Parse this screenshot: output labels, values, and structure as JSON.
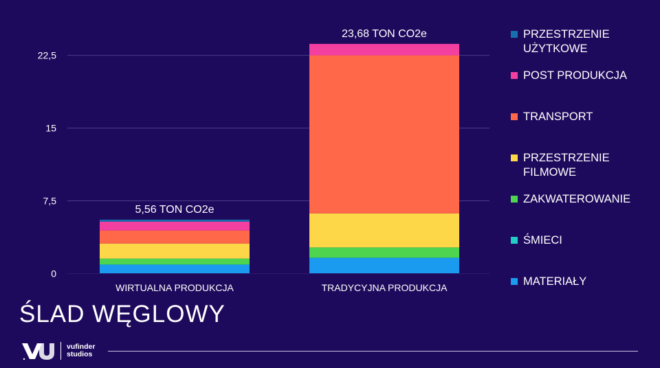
{
  "page": {
    "title": "ŚLAD WĘGLOWY"
  },
  "logo": {
    "mark": "VU",
    "text_line1": "vufinder",
    "text_line2": "studios"
  },
  "colors": {
    "background": "#1e0a5c",
    "grid": "#4a3a88",
    "text": "#ffffff"
  },
  "chart_data": {
    "type": "bar",
    "stacked": true,
    "categories": [
      "WIRTUALNA PRODUKCJA",
      "TRADYCYJNA PRODUKCJA"
    ],
    "totals_labels": [
      "5,56 TON CO2e",
      "23,68 TON CO2e"
    ],
    "ylim": [
      0,
      25
    ],
    "yticks": [
      0,
      7.5,
      15,
      22.5
    ],
    "ytick_labels": [
      "0",
      "7,5",
      "15",
      "22,5"
    ],
    "grid": true,
    "legend_position": "right",
    "series": [
      {
        "name": "MATERIAŁY",
        "color": "#1a9bf0",
        "values": [
          0.9,
          1.6
        ]
      },
      {
        "name": "ŚMIECI",
        "color": "#1fcfc4",
        "values": [
          0.05,
          0.05
        ]
      },
      {
        "name": "ZAKWATEROWANIE",
        "color": "#4fd44f",
        "values": [
          0.6,
          1.05
        ]
      },
      {
        "name": "PRZESTRZENIE FILMOWE",
        "color": "#fdd748",
        "values": [
          1.55,
          3.5
        ]
      },
      {
        "name": "TRANSPORT",
        "color": "#ff6848",
        "values": [
          1.35,
          16.3
        ]
      },
      {
        "name": "POST PRODUKCJA",
        "color": "#f23fa0",
        "values": [
          0.91,
          1.18
        ]
      },
      {
        "name": "PRZESTRZENIE UŻYTKOWE",
        "color": "#1570ad",
        "values": [
          0.2,
          0.0
        ]
      }
    ],
    "legend_order": [
      "PRZESTRZENIE UŻYTKOWE",
      "POST PRODUKCJA",
      "TRANSPORT",
      "PRZESTRZENIE FILMOWE",
      "ZAKWATEROWANIE",
      "ŚMIECI",
      "MATERIAŁY"
    ]
  }
}
